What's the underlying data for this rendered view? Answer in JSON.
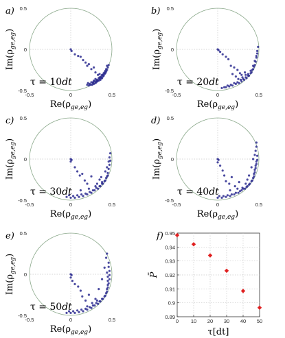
{
  "chart_data": [
    {
      "type": "scatter",
      "panel_label": "a)",
      "annotation": "τ = 10dt",
      "xlabel": "Re(ρge,eg)",
      "ylabel": "Im(ρge,eg)",
      "xlim": [
        -0.5,
        0.5
      ],
      "ylim": [
        -0.5,
        0.5
      ],
      "xticks": [
        "-0.5",
        "0",
        "0.5"
      ],
      "yticks": [
        "0.5",
        "0",
        "-0.5"
      ],
      "colors": {
        "points": "#2b2b8f",
        "circle": "#8aa88a",
        "grid": "#c8c8c8"
      },
      "points": [
        [
          0.0,
          0.0
        ],
        [
          0.01,
          -0.02
        ],
        [
          0.05,
          -0.06
        ],
        [
          0.09,
          -0.08
        ],
        [
          0.12,
          -0.09
        ],
        [
          0.15,
          -0.13
        ],
        [
          0.18,
          -0.16
        ],
        [
          0.2,
          -0.2
        ],
        [
          0.22,
          -0.18
        ],
        [
          0.25,
          -0.24
        ],
        [
          0.28,
          -0.22
        ],
        [
          0.3,
          -0.28
        ],
        [
          0.33,
          -0.31
        ],
        [
          0.35,
          -0.3
        ],
        [
          0.37,
          -0.33
        ],
        [
          0.28,
          -0.38
        ],
        [
          0.3,
          -0.36
        ],
        [
          0.32,
          -0.37
        ],
        [
          0.34,
          -0.35
        ],
        [
          0.36,
          -0.34
        ],
        [
          0.38,
          -0.31
        ],
        [
          0.4,
          -0.29
        ],
        [
          0.42,
          -0.26
        ],
        [
          0.25,
          -0.4
        ],
        [
          0.27,
          -0.41
        ],
        [
          0.29,
          -0.39
        ],
        [
          0.31,
          -0.4
        ],
        [
          0.33,
          -0.38
        ],
        [
          0.35,
          -0.36
        ],
        [
          0.37,
          -0.35
        ],
        [
          0.39,
          -0.33
        ],
        [
          0.41,
          -0.3
        ],
        [
          0.43,
          -0.27
        ],
        [
          0.23,
          -0.42
        ],
        [
          0.26,
          -0.43
        ],
        [
          0.28,
          -0.42
        ],
        [
          0.3,
          -0.41
        ],
        [
          0.32,
          -0.39
        ],
        [
          0.34,
          -0.38
        ],
        [
          0.36,
          -0.37
        ],
        [
          0.38,
          -0.35
        ],
        [
          0.4,
          -0.32
        ],
        [
          0.42,
          -0.29
        ],
        [
          0.44,
          -0.25
        ],
        [
          0.45,
          -0.22
        ],
        [
          0.22,
          -0.44
        ],
        [
          0.24,
          -0.43
        ],
        [
          0.27,
          -0.4
        ],
        [
          0.31,
          -0.38
        ],
        [
          0.35,
          -0.34
        ],
        [
          0.39,
          -0.31
        ],
        [
          0.41,
          -0.28
        ],
        [
          0.43,
          -0.24
        ],
        [
          0.44,
          -0.2
        ],
        [
          0.46,
          -0.19
        ],
        [
          0.2,
          -0.43
        ],
        [
          0.21,
          -0.41
        ]
      ]
    },
    {
      "type": "scatter",
      "panel_label": "b)",
      "annotation": "τ = 20dt",
      "xlabel": "Re(ρge,eg)",
      "ylabel": "Im(ρge,eg)",
      "xlim": [
        -0.5,
        0.5
      ],
      "ylim": [
        -0.5,
        0.5
      ],
      "xticks": [
        "-0.5",
        "0",
        "0.5"
      ],
      "yticks": [
        "0.5",
        "0",
        "-0.5"
      ],
      "colors": {
        "points": "#2b2b8f",
        "circle": "#8aa88a",
        "grid": "#c8c8c8"
      },
      "points": [
        [
          0.0,
          0.0
        ],
        [
          0.01,
          -0.01
        ],
        [
          0.03,
          -0.03
        ],
        [
          0.06,
          -0.06
        ],
        [
          0.1,
          -0.09
        ],
        [
          0.13,
          -0.12
        ],
        [
          0.16,
          -0.2
        ],
        [
          0.2,
          -0.22
        ],
        [
          0.24,
          -0.25
        ],
        [
          0.18,
          -0.3
        ],
        [
          0.22,
          -0.33
        ],
        [
          0.27,
          -0.29
        ],
        [
          0.3,
          -0.34
        ],
        [
          0.34,
          -0.31
        ],
        [
          0.37,
          -0.3
        ],
        [
          0.4,
          -0.26
        ],
        [
          0.43,
          -0.2
        ],
        [
          0.45,
          -0.14
        ],
        [
          0.47,
          -0.08
        ],
        [
          0.48,
          -0.02
        ],
        [
          0.49,
          0.03
        ],
        [
          0.1,
          -0.46
        ],
        [
          0.14,
          -0.45
        ],
        [
          0.18,
          -0.44
        ],
        [
          0.22,
          -0.42
        ],
        [
          0.26,
          -0.41
        ],
        [
          0.29,
          -0.39
        ],
        [
          0.32,
          -0.37
        ],
        [
          0.35,
          -0.35
        ],
        [
          0.38,
          -0.32
        ],
        [
          0.41,
          -0.28
        ],
        [
          0.43,
          -0.24
        ],
        [
          0.45,
          -0.19
        ],
        [
          0.46,
          -0.15
        ],
        [
          0.47,
          -0.1
        ],
        [
          0.48,
          -0.05
        ],
        [
          0.12,
          -0.44
        ],
        [
          0.16,
          -0.43
        ],
        [
          0.2,
          -0.41
        ],
        [
          0.24,
          -0.4
        ],
        [
          0.28,
          -0.37
        ],
        [
          0.31,
          -0.36
        ],
        [
          0.34,
          -0.34
        ],
        [
          0.37,
          -0.32
        ],
        [
          0.4,
          -0.29
        ],
        [
          0.42,
          -0.25
        ],
        [
          0.44,
          -0.21
        ],
        [
          0.05,
          -0.47
        ],
        [
          0.08,
          -0.46
        ],
        [
          0.25,
          -0.36
        ],
        [
          0.33,
          -0.28
        ],
        [
          0.29,
          -0.31
        ]
      ]
    },
    {
      "type": "scatter",
      "panel_label": "c)",
      "annotation": "τ = 30dt",
      "xlabel": "Re(ρge,eg)",
      "ylabel": "Im(ρge,eg)",
      "xlim": [
        -0.5,
        0.5
      ],
      "ylim": [
        -0.5,
        0.5
      ],
      "xticks": [
        "-0.5",
        "0",
        "0.5"
      ],
      "yticks": [
        "0.5",
        "0",
        "-0.5"
      ],
      "colors": {
        "points": "#2b2b8f",
        "circle": "#8aa88a",
        "grid": "#c8c8c8"
      },
      "points": [
        [
          0.0,
          0.0
        ],
        [
          0.01,
          -0.01
        ],
        [
          0.0,
          -0.03
        ],
        [
          0.05,
          -0.1
        ],
        [
          0.08,
          -0.15
        ],
        [
          0.11,
          -0.2
        ],
        [
          0.14,
          -0.18
        ],
        [
          0.17,
          -0.26
        ],
        [
          0.2,
          -0.3
        ],
        [
          0.25,
          -0.21
        ],
        [
          0.3,
          -0.33
        ],
        [
          0.35,
          -0.25
        ],
        [
          0.38,
          -0.28
        ],
        [
          0.42,
          -0.15
        ],
        [
          0.44,
          -0.1
        ],
        [
          0.46,
          -0.03
        ],
        [
          0.47,
          0.02
        ],
        [
          0.48,
          0.07
        ],
        [
          -0.05,
          -0.46
        ],
        [
          0.0,
          -0.47
        ],
        [
          0.05,
          -0.47
        ],
        [
          0.1,
          -0.46
        ],
        [
          0.15,
          -0.45
        ],
        [
          0.2,
          -0.43
        ],
        [
          0.25,
          -0.41
        ],
        [
          0.29,
          -0.38
        ],
        [
          0.33,
          -0.36
        ],
        [
          0.36,
          -0.33
        ],
        [
          0.39,
          -0.3
        ],
        [
          0.42,
          -0.26
        ],
        [
          0.44,
          -0.21
        ],
        [
          0.45,
          -0.17
        ],
        [
          0.46,
          -0.12
        ],
        [
          0.47,
          -0.07
        ],
        [
          0.48,
          -0.02
        ],
        [
          -0.02,
          -0.44
        ],
        [
          0.03,
          -0.45
        ],
        [
          0.08,
          -0.44
        ],
        [
          0.13,
          -0.43
        ],
        [
          0.18,
          -0.42
        ],
        [
          0.23,
          -0.4
        ],
        [
          0.27,
          -0.38
        ],
        [
          0.31,
          -0.35
        ],
        [
          0.35,
          -0.33
        ],
        [
          0.38,
          -0.3
        ],
        [
          0.41,
          -0.27
        ],
        [
          0.43,
          -0.23
        ],
        [
          0.45,
          -0.2
        ],
        [
          0.12,
          -0.38
        ],
        [
          0.22,
          -0.36
        ],
        [
          0.32,
          -0.3
        ],
        [
          0.37,
          -0.22
        ]
      ]
    },
    {
      "type": "scatter",
      "panel_label": "d)",
      "annotation": "τ = 40dt",
      "xlabel": "Re(ρge,eg)",
      "ylabel": "Im(ρge,eg)",
      "xlim": [
        -0.5,
        0.5
      ],
      "ylim": [
        -0.5,
        0.5
      ],
      "xticks": [
        "-0.5",
        "0",
        "0.5"
      ],
      "yticks": [
        "0.5",
        "0",
        "-0.5"
      ],
      "colors": {
        "points": "#2b2b8f",
        "circle": "#8aa88a",
        "grid": "#c8c8c8"
      },
      "points": [
        [
          0.0,
          0.0
        ],
        [
          0.01,
          -0.01
        ],
        [
          0.0,
          -0.04
        ],
        [
          0.03,
          -0.08
        ],
        [
          0.06,
          -0.14
        ],
        [
          0.08,
          -0.2
        ],
        [
          0.1,
          -0.27
        ],
        [
          0.14,
          -0.3
        ],
        [
          0.17,
          -0.22
        ],
        [
          0.21,
          -0.33
        ],
        [
          0.26,
          -0.28
        ],
        [
          0.3,
          -0.35
        ],
        [
          0.34,
          -0.3
        ],
        [
          0.38,
          -0.2
        ],
        [
          0.41,
          -0.1
        ],
        [
          0.43,
          0.0
        ],
        [
          0.45,
          0.05
        ],
        [
          0.46,
          0.1
        ],
        [
          0.47,
          0.15
        ],
        [
          0.47,
          0.2
        ],
        [
          0.0,
          -0.47
        ],
        [
          0.05,
          -0.47
        ],
        [
          0.1,
          -0.46
        ],
        [
          0.15,
          -0.45
        ],
        [
          0.2,
          -0.43
        ],
        [
          0.25,
          -0.41
        ],
        [
          0.29,
          -0.38
        ],
        [
          0.33,
          -0.36
        ],
        [
          0.36,
          -0.33
        ],
        [
          0.39,
          -0.3
        ],
        [
          0.42,
          -0.26
        ],
        [
          0.44,
          -0.21
        ],
        [
          0.45,
          -0.16
        ],
        [
          0.46,
          -0.11
        ],
        [
          0.47,
          -0.06
        ],
        [
          0.48,
          -0.01
        ],
        [
          0.48,
          0.04
        ],
        [
          0.02,
          -0.45
        ],
        [
          0.07,
          -0.45
        ],
        [
          0.12,
          -0.44
        ],
        [
          0.17,
          -0.43
        ],
        [
          0.22,
          -0.41
        ],
        [
          0.27,
          -0.39
        ],
        [
          0.31,
          -0.36
        ],
        [
          0.35,
          -0.34
        ],
        [
          0.38,
          -0.31
        ],
        [
          0.41,
          -0.27
        ],
        [
          0.43,
          -0.23
        ],
        [
          0.44,
          -0.18
        ],
        [
          0.45,
          -0.13
        ],
        [
          0.46,
          -0.08
        ],
        [
          0.47,
          -0.03
        ],
        [
          0.15,
          -0.38
        ],
        [
          0.24,
          -0.36
        ],
        [
          0.36,
          -0.25
        ]
      ]
    },
    {
      "type": "scatter",
      "panel_label": "e)",
      "annotation": "τ = 50dt",
      "xlabel": "Re(ρge,eg)",
      "ylabel": "Im(ρge,eg)",
      "xlim": [
        -0.5,
        0.5
      ],
      "ylim": [
        -0.5,
        0.5
      ],
      "xticks": [
        "-0.5",
        "0",
        "0.5"
      ],
      "yticks": [
        "0.5",
        "0",
        "-0.5"
      ],
      "colors": {
        "points": "#2b2b8f",
        "circle": "#8aa88a",
        "grid": "#c8c8c8"
      },
      "points": [
        [
          0.0,
          0.0
        ],
        [
          0.01,
          -0.01
        ],
        [
          0.0,
          -0.04
        ],
        [
          0.02,
          -0.08
        ],
        [
          0.05,
          -0.12
        ],
        [
          0.09,
          -0.15
        ],
        [
          0.12,
          -0.2
        ],
        [
          0.14,
          -0.27
        ],
        [
          0.18,
          -0.32
        ],
        [
          0.22,
          -0.25
        ],
        [
          0.26,
          -0.35
        ],
        [
          0.3,
          -0.3
        ],
        [
          0.34,
          -0.18
        ],
        [
          0.38,
          -0.06
        ],
        [
          0.41,
          0.08
        ],
        [
          0.43,
          0.2
        ],
        [
          0.44,
          0.25
        ],
        [
          -0.05,
          -0.47
        ],
        [
          0.0,
          -0.47
        ],
        [
          0.05,
          -0.47
        ],
        [
          0.1,
          -0.46
        ],
        [
          0.15,
          -0.45
        ],
        [
          0.2,
          -0.43
        ],
        [
          0.25,
          -0.41
        ],
        [
          0.29,
          -0.38
        ],
        [
          0.33,
          -0.36
        ],
        [
          0.36,
          -0.33
        ],
        [
          0.39,
          -0.3
        ],
        [
          0.42,
          -0.26
        ],
        [
          0.44,
          -0.21
        ],
        [
          0.45,
          -0.16
        ],
        [
          0.46,
          -0.11
        ],
        [
          0.47,
          -0.06
        ],
        [
          0.47,
          -0.01
        ],
        [
          0.47,
          0.04
        ],
        [
          0.46,
          0.09
        ],
        [
          0.46,
          0.14
        ],
        [
          -0.02,
          -0.45
        ],
        [
          0.03,
          -0.45
        ],
        [
          0.08,
          -0.44
        ],
        [
          0.13,
          -0.43
        ],
        [
          0.18,
          -0.42
        ],
        [
          0.23,
          -0.4
        ],
        [
          0.27,
          -0.38
        ],
        [
          0.31,
          -0.35
        ],
        [
          0.35,
          -0.33
        ],
        [
          0.38,
          -0.3
        ],
        [
          0.41,
          -0.27
        ],
        [
          0.43,
          -0.23
        ],
        [
          0.44,
          -0.18
        ],
        [
          0.45,
          -0.13
        ],
        [
          0.45,
          -0.08
        ],
        [
          0.45,
          -0.03
        ],
        [
          0.44,
          0.02
        ],
        [
          0.2,
          -0.39
        ],
        [
          0.32,
          -0.32
        ]
      ]
    },
    {
      "type": "scatter",
      "panel_label": "f)",
      "xlabel": "τ[dt]",
      "ylabel": "P̄",
      "xlim": [
        0,
        50
      ],
      "ylim": [
        0.89,
        0.95
      ],
      "xticks": [
        "0",
        "10",
        "20",
        "30",
        "40",
        "50"
      ],
      "yticks": [
        "0.95",
        "0.94",
        "0.93",
        "0.92",
        "0.91",
        "0.9",
        "0.89"
      ],
      "colors": {
        "points": "#e02020",
        "grid": "#c8c8c8"
      },
      "x": [
        0,
        10,
        20,
        30,
        40,
        50
      ],
      "y": [
        0.9485,
        0.942,
        0.934,
        0.923,
        0.9085,
        0.8965
      ]
    }
  ]
}
